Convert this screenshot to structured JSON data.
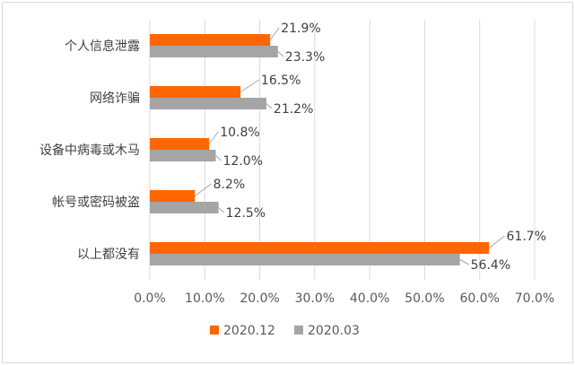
{
  "chart_data": {
    "type": "bar",
    "orientation": "horizontal",
    "categories": [
      "个人信息泄露",
      "网络诈骗",
      "设备中病毒或木马",
      "帐号或密码被盗",
      "以上都没有"
    ],
    "series": [
      {
        "name": "2020.12",
        "color": "#ff6600",
        "values": [
          21.9,
          16.5,
          10.8,
          8.2,
          61.7
        ],
        "labels": [
          "21.9%",
          "16.5%",
          "10.8%",
          "8.2%",
          "61.7%"
        ]
      },
      {
        "name": "2020.03",
        "color": "#a5a5a5",
        "values": [
          23.3,
          21.2,
          12.0,
          12.5,
          56.4
        ],
        "labels": [
          "23.3%",
          "21.2%",
          "12.0%",
          "12.5%",
          "56.4%"
        ]
      }
    ],
    "xlim": [
      0,
      70
    ],
    "x_ticks": [
      "0.0%",
      "10.0%",
      "20.0%",
      "30.0%",
      "40.0%",
      "50.0%",
      "60.0%",
      "70.0%"
    ],
    "grid": "vertical",
    "legend_position": "bottom",
    "title": "",
    "xlabel": "",
    "ylabel": "",
    "gridline_color": "#d9d9d9",
    "leader_line_color": "#a5a5a5"
  }
}
